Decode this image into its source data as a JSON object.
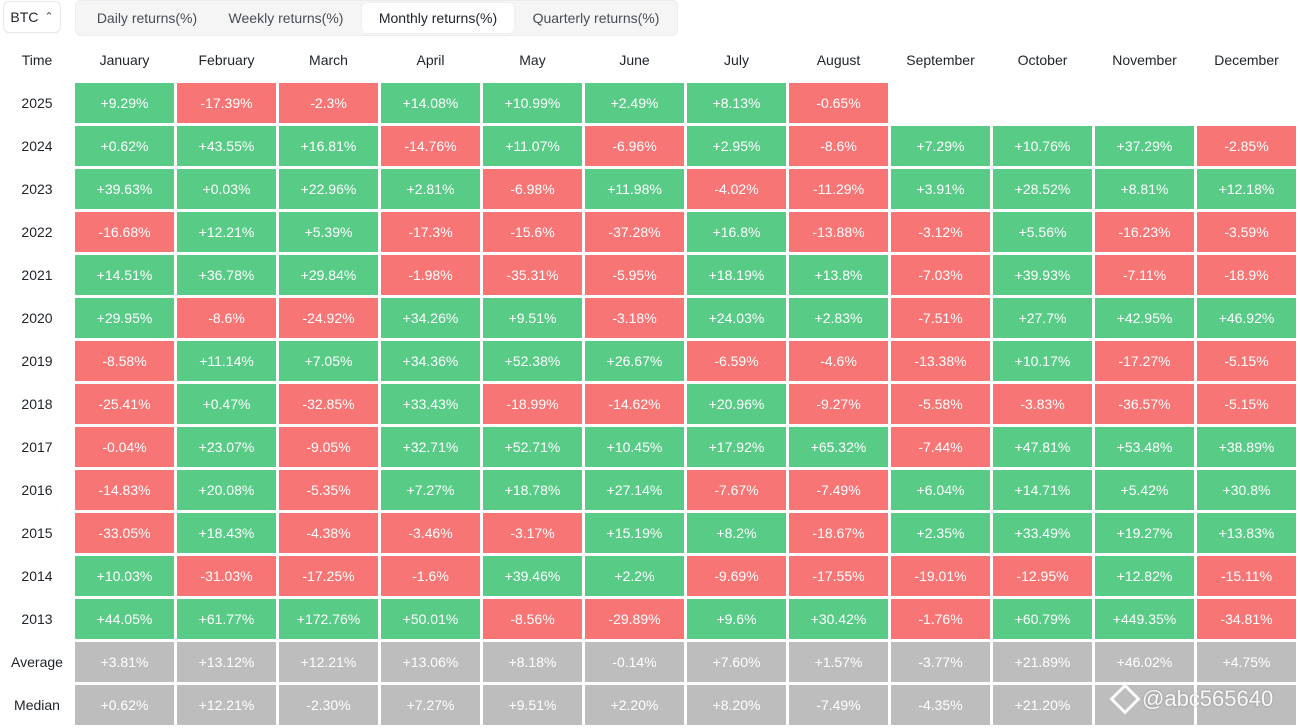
{
  "asset_selector": {
    "value": "BTC",
    "icon": "chevron-updown-icon"
  },
  "tabs": [
    {
      "label": "Daily returns(%)",
      "active": false
    },
    {
      "label": "Weekly returns(%)",
      "active": false
    },
    {
      "label": "Monthly returns(%)",
      "active": true
    },
    {
      "label": "Quarterly returns(%)",
      "active": false
    }
  ],
  "colors": {
    "positive": "#58cc87",
    "negative": "#f87575",
    "summary": "#bdbdbd"
  },
  "table": {
    "corner_label": "Time",
    "months": [
      "January",
      "February",
      "March",
      "April",
      "May",
      "June",
      "July",
      "August",
      "September",
      "October",
      "November",
      "December"
    ],
    "rows": [
      {
        "label": "2025",
        "values": [
          "+9.29%",
          "-17.39%",
          "-2.3%",
          "+14.08%",
          "+10.99%",
          "+2.49%",
          "+8.13%",
          "-0.65%",
          "",
          "",
          "",
          ""
        ]
      },
      {
        "label": "2024",
        "values": [
          "+0.62%",
          "+43.55%",
          "+16.81%",
          "-14.76%",
          "+11.07%",
          "-6.96%",
          "+2.95%",
          "-8.6%",
          "+7.29%",
          "+10.76%",
          "+37.29%",
          "-2.85%"
        ]
      },
      {
        "label": "2023",
        "values": [
          "+39.63%",
          "+0.03%",
          "+22.96%",
          "+2.81%",
          "-6.98%",
          "+11.98%",
          "-4.02%",
          "-11.29%",
          "+3.91%",
          "+28.52%",
          "+8.81%",
          "+12.18%"
        ]
      },
      {
        "label": "2022",
        "values": [
          "-16.68%",
          "+12.21%",
          "+5.39%",
          "-17.3%",
          "-15.6%",
          "-37.28%",
          "+16.8%",
          "-13.88%",
          "-3.12%",
          "+5.56%",
          "-16.23%",
          "-3.59%"
        ]
      },
      {
        "label": "2021",
        "values": [
          "+14.51%",
          "+36.78%",
          "+29.84%",
          "-1.98%",
          "-35.31%",
          "-5.95%",
          "+18.19%",
          "+13.8%",
          "-7.03%",
          "+39.93%",
          "-7.11%",
          "-18.9%"
        ]
      },
      {
        "label": "2020",
        "values": [
          "+29.95%",
          "-8.6%",
          "-24.92%",
          "+34.26%",
          "+9.51%",
          "-3.18%",
          "+24.03%",
          "+2.83%",
          "-7.51%",
          "+27.7%",
          "+42.95%",
          "+46.92%"
        ]
      },
      {
        "label": "2019",
        "values": [
          "-8.58%",
          "+11.14%",
          "+7.05%",
          "+34.36%",
          "+52.38%",
          "+26.67%",
          "-6.59%",
          "-4.6%",
          "-13.38%",
          "+10.17%",
          "-17.27%",
          "-5.15%"
        ]
      },
      {
        "label": "2018",
        "values": [
          "-25.41%",
          "+0.47%",
          "-32.85%",
          "+33.43%",
          "-18.99%",
          "-14.62%",
          "+20.96%",
          "-9.27%",
          "-5.58%",
          "-3.83%",
          "-36.57%",
          "-5.15%"
        ]
      },
      {
        "label": "2017",
        "values": [
          "-0.04%",
          "+23.07%",
          "-9.05%",
          "+32.71%",
          "+52.71%",
          "+10.45%",
          "+17.92%",
          "+65.32%",
          "-7.44%",
          "+47.81%",
          "+53.48%",
          "+38.89%"
        ]
      },
      {
        "label": "2016",
        "values": [
          "-14.83%",
          "+20.08%",
          "-5.35%",
          "+7.27%",
          "+18.78%",
          "+27.14%",
          "-7.67%",
          "-7.49%",
          "+6.04%",
          "+14.71%",
          "+5.42%",
          "+30.8%"
        ]
      },
      {
        "label": "2015",
        "values": [
          "-33.05%",
          "+18.43%",
          "-4.38%",
          "-3.46%",
          "-3.17%",
          "+15.19%",
          "+8.2%",
          "-18.67%",
          "+2.35%",
          "+33.49%",
          "+19.27%",
          "+13.83%"
        ]
      },
      {
        "label": "2014",
        "values": [
          "+10.03%",
          "-31.03%",
          "-17.25%",
          "-1.6%",
          "+39.46%",
          "+2.2%",
          "-9.69%",
          "-17.55%",
          "-19.01%",
          "-12.95%",
          "+12.82%",
          "-15.11%"
        ]
      },
      {
        "label": "2013",
        "values": [
          "+44.05%",
          "+61.77%",
          "+172.76%",
          "+50.01%",
          "-8.56%",
          "-29.89%",
          "+9.6%",
          "+30.42%",
          "-1.76%",
          "+60.79%",
          "+449.35%",
          "-34.81%"
        ]
      }
    ],
    "summary_rows": [
      {
        "label": "Average",
        "values": [
          "+3.81%",
          "+13.12%",
          "+12.21%",
          "+13.06%",
          "+8.18%",
          "-0.14%",
          "+7.60%",
          "+1.57%",
          "-3.77%",
          "+21.89%",
          "+46.02%",
          "+4.75%"
        ]
      },
      {
        "label": "Median",
        "values": [
          "+0.62%",
          "+12.21%",
          "-2.30%",
          "+7.27%",
          "+9.51%",
          "+2.20%",
          "+8.20%",
          "-7.49%",
          "-4.35%",
          "+21.20%",
          "",
          ""
        ]
      }
    ]
  },
  "watermark": {
    "text": "@abc565640",
    "icon": "binance-diamond-icon"
  }
}
